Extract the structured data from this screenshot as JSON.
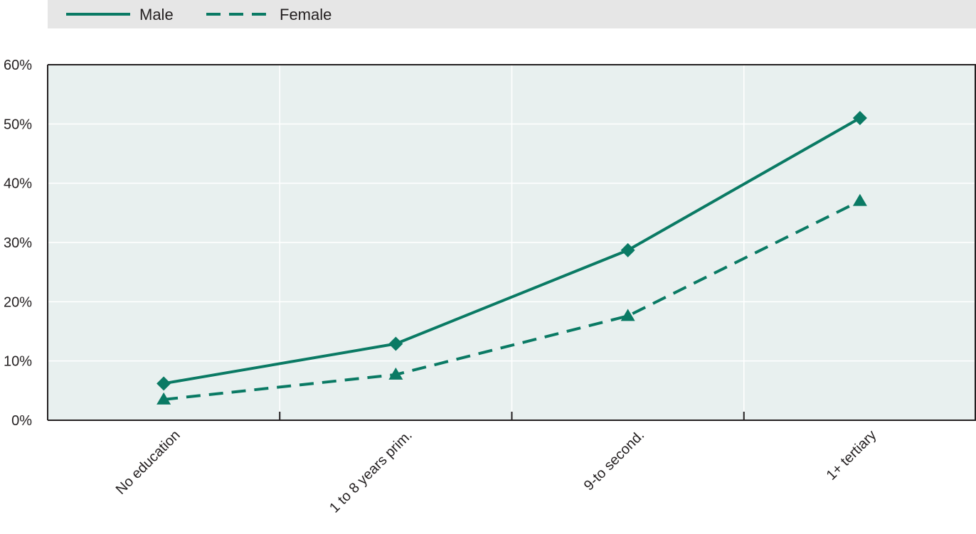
{
  "chart_data": {
    "type": "line",
    "categories": [
      "No education",
      "1 to 8 years prim.",
      "9-to second.",
      "1+ tertiary"
    ],
    "series": [
      {
        "name": "Male",
        "values": [
          6.2,
          12.9,
          28.7,
          51.0
        ],
        "marker": "diamond",
        "line_style": "solid"
      },
      {
        "name": "Female",
        "values": [
          3.5,
          7.7,
          17.6,
          37.0
        ],
        "marker": "triangle",
        "line_style": "dashed"
      }
    ],
    "y_ticks": [
      "0%",
      "10%",
      "20%",
      "30%",
      "40%",
      "50%",
      "60%"
    ],
    "ylim": [
      0,
      60
    ],
    "grid": true,
    "legend_position": "top-left",
    "colors": {
      "series": "#0a7a64",
      "plot_bg": "#e8f0ef",
      "legend_bg": "#e6e6e6",
      "grid": "#ffffff",
      "axis": "#231f20"
    }
  }
}
